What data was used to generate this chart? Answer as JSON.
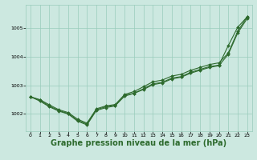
{
  "bg_color": "#cce8e0",
  "grid_color": "#99ccbb",
  "line_color": "#2d6a2d",
  "marker_color": "#2d6a2d",
  "xlabel": "Graphe pression niveau de la mer (hPa)",
  "xlabel_fontsize": 7,
  "ylim": [
    1001.4,
    1005.8
  ],
  "xlim": [
    -0.5,
    23.5
  ],
  "yticks": [
    1002,
    1003,
    1004,
    1005
  ],
  "xticks": [
    0,
    1,
    2,
    3,
    4,
    5,
    6,
    7,
    8,
    9,
    10,
    11,
    12,
    13,
    14,
    15,
    16,
    17,
    18,
    19,
    20,
    21,
    22,
    23
  ],
  "line1_y": [
    1002.6,
    1002.45,
    1002.25,
    1002.1,
    1002.0,
    1001.75,
    1001.62,
    1002.12,
    1002.22,
    1002.28,
    1002.65,
    1002.72,
    1002.85,
    1003.02,
    1003.08,
    1003.22,
    1003.28,
    1003.42,
    1003.52,
    1003.62,
    1003.68,
    1004.08,
    1004.82,
    1005.32
  ],
  "line2_y": [
    1002.6,
    1002.48,
    1002.28,
    1002.12,
    1002.02,
    1001.78,
    1001.65,
    1002.15,
    1002.25,
    1002.3,
    1002.62,
    1002.72,
    1002.88,
    1003.05,
    1003.1,
    1003.25,
    1003.3,
    1003.45,
    1003.55,
    1003.65,
    1003.7,
    1004.38,
    1005.02,
    1005.38
  ],
  "line3_y": [
    1002.6,
    1002.5,
    1002.32,
    1002.15,
    1002.05,
    1001.82,
    1001.68,
    1002.18,
    1002.28,
    1002.33,
    1002.68,
    1002.78,
    1002.95,
    1003.12,
    1003.18,
    1003.32,
    1003.38,
    1003.52,
    1003.62,
    1003.72,
    1003.78,
    1004.12,
    1004.88,
    1005.38
  ]
}
